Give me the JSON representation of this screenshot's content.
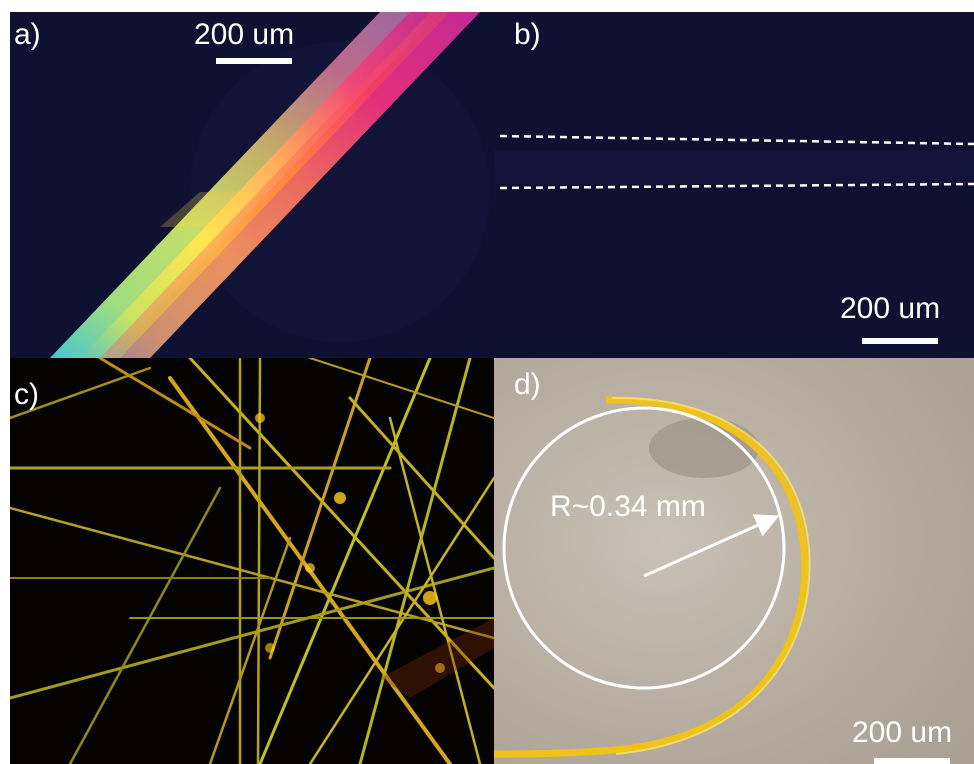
{
  "figure": {
    "panels": [
      {
        "id": "a",
        "label": "a)",
        "scale_text": "200 um"
      },
      {
        "id": "b",
        "label": "b)",
        "scale_text": "200 um"
      },
      {
        "id": "c",
        "label": "c)"
      },
      {
        "id": "d",
        "label": "d)",
        "scale_text": "200 um",
        "radius_text": "R~0.34 mm"
      }
    ]
  },
  "colors": {
    "dark_background": "#0f1133",
    "black_background": "#050302",
    "grey_background": "#b3a89c",
    "label_light": "#ffffff",
    "crystal_yellow": "#ffd21a",
    "crystal_magenta": "#e8306a",
    "crystal_cyan": "#5de0c8"
  }
}
